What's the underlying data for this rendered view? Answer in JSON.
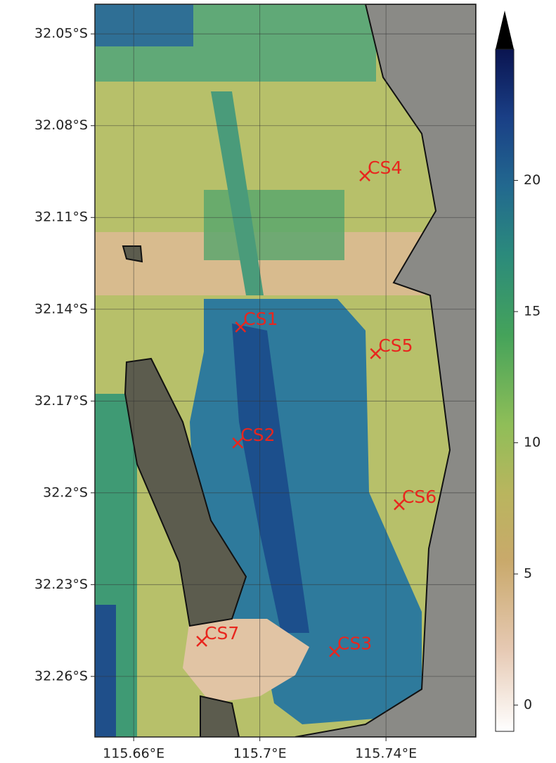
{
  "map": {
    "xlim": [
      115.6477,
      115.7685
    ],
    "ylim": [
      -32.2798,
      -32.0403
    ],
    "xticks": [
      {
        "value": 115.66,
        "label": "115.66°E"
      },
      {
        "value": 115.7,
        "label": "115.7°E"
      },
      {
        "value": 115.74,
        "label": "115.74°E"
      }
    ],
    "yticks": [
      {
        "value": -32.05,
        "label": "32.05°S"
      },
      {
        "value": -32.08,
        "label": "32.08°S"
      },
      {
        "value": -32.11,
        "label": "32.11°S"
      },
      {
        "value": -32.14,
        "label": "32.14°S"
      },
      {
        "value": -32.17,
        "label": "32.17°S"
      },
      {
        "value": -32.2,
        "label": "32.2°S"
      },
      {
        "value": -32.23,
        "label": "32.23°S"
      },
      {
        "value": -32.26,
        "label": "32.26°S"
      }
    ],
    "grid": true,
    "marker_color": "#e8261e",
    "stations": [
      {
        "name": "CS4",
        "lon": 115.7333,
        "lat": -32.0964
      },
      {
        "name": "CS1",
        "lon": 115.6939,
        "lat": -32.1458
      },
      {
        "name": "CS5",
        "lon": 115.7367,
        "lat": -32.1545
      },
      {
        "name": "CS2",
        "lon": 115.693,
        "lat": -32.1837
      },
      {
        "name": "CS6",
        "lon": 115.7442,
        "lat": -32.2039
      },
      {
        "name": "CS7",
        "lon": 115.6816,
        "lat": -32.2485
      },
      {
        "name": "CS3",
        "lon": 115.7237,
        "lat": -32.2519
      }
    ],
    "colorbar": {
      "clim": [
        -1,
        25
      ],
      "ticks": [
        0,
        5,
        10,
        15,
        20
      ],
      "extend": "max"
    }
  }
}
